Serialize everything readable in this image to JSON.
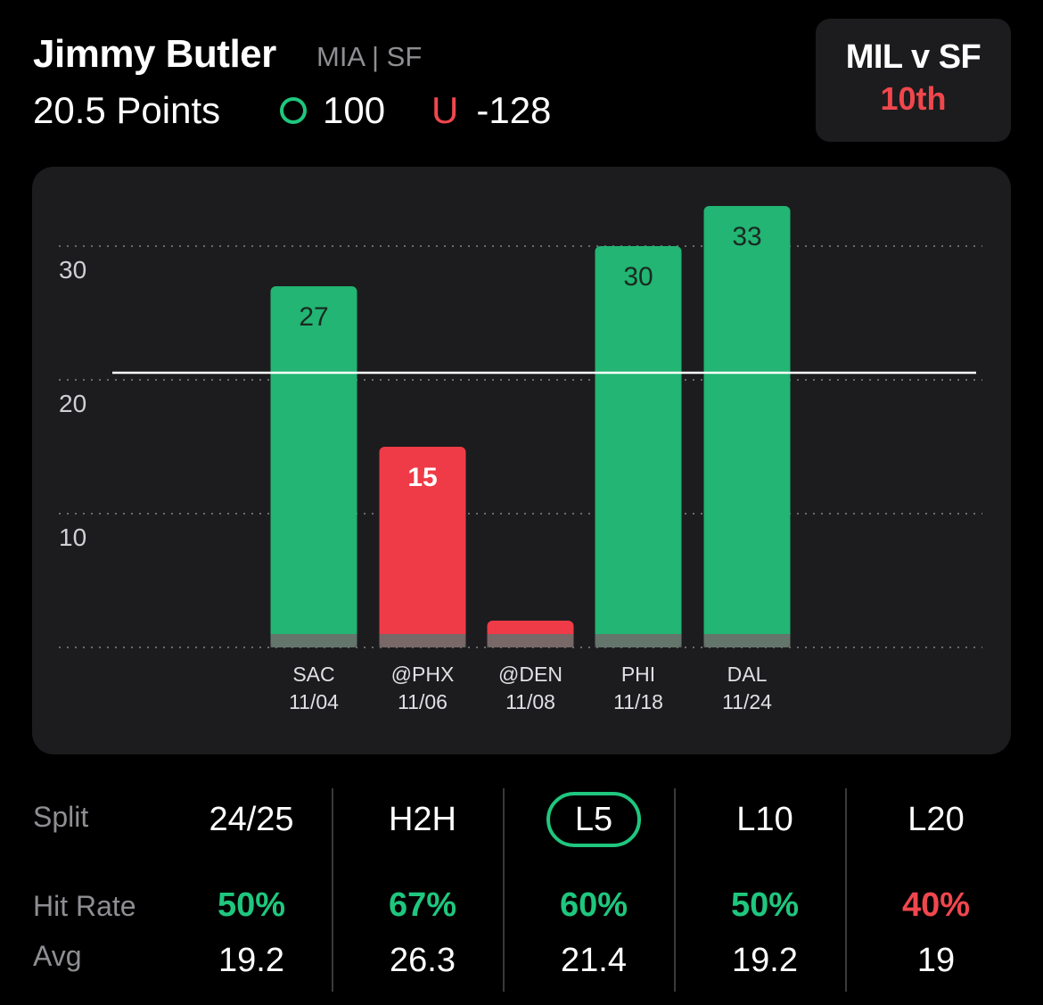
{
  "header": {
    "player": "Jimmy Butler",
    "teams": "MIA | SF",
    "line": "20.5 Points",
    "over_value": "100",
    "under_label": "U",
    "under_value": "-128"
  },
  "matchup": {
    "title": "MIL v SF",
    "rank": "10th",
    "rank_color": "#f0474d"
  },
  "chart_data": {
    "type": "bar",
    "categories": [
      "SAC 11/04",
      "@PHX 11/06",
      "@DEN 11/08",
      "PHI 11/18",
      "DAL 11/24"
    ],
    "opponents": [
      "SAC",
      "@PHX",
      "@DEN",
      "PHI",
      "DAL"
    ],
    "dates": [
      "11/04",
      "11/06",
      "11/08",
      "11/18",
      "11/24"
    ],
    "values": [
      27,
      15,
      2,
      30,
      33
    ],
    "labels": [
      "27",
      "15",
      "",
      "30",
      "33"
    ],
    "yticks": [
      10,
      20,
      30
    ],
    "line_value": 20.5,
    "ylim": [
      0,
      33
    ],
    "grid": true,
    "colors": {
      "over": "#22b573",
      "under": "#ee3b47"
    }
  },
  "stats": {
    "split_label": "Split",
    "hit_rate_label": "Hit Rate",
    "avg_label": "Avg",
    "columns": [
      {
        "split": "24/25",
        "hit_rate": "50%",
        "avg": "19.2",
        "hit": "green"
      },
      {
        "split": "H2H",
        "hit_rate": "67%",
        "avg": "26.3",
        "hit": "green"
      },
      {
        "split": "L5",
        "hit_rate": "60%",
        "avg": "21.4",
        "hit": "green",
        "active": true
      },
      {
        "split": "L10",
        "hit_rate": "50%",
        "avg": "19.2",
        "hit": "green"
      },
      {
        "split": "L20",
        "hit_rate": "40%",
        "avg": "19",
        "hit": "red"
      }
    ]
  }
}
